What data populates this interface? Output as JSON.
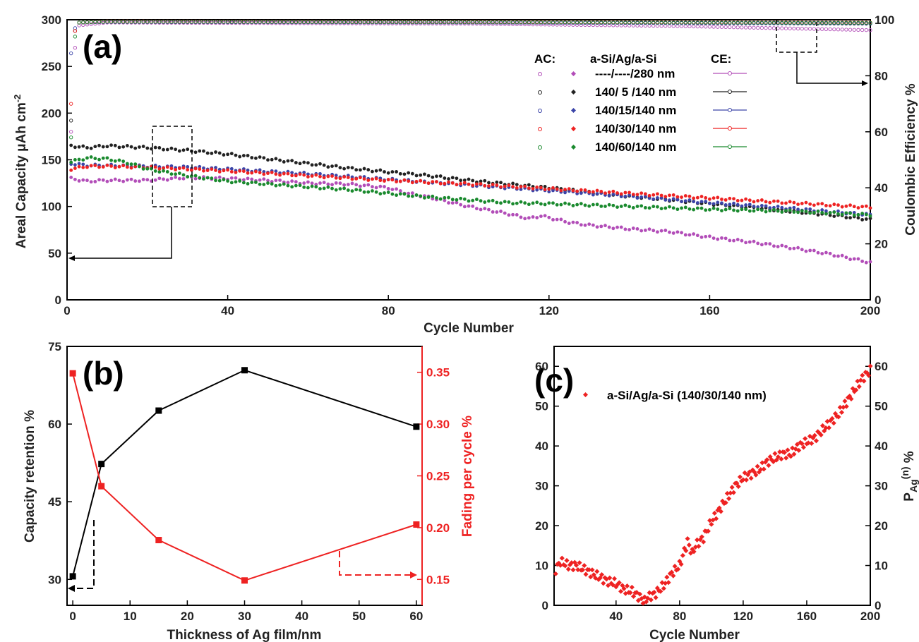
{
  "chart_data": [
    {
      "panel": "(a)",
      "type": "scatter",
      "xlabel": "Cycle Number",
      "ylabel": "Areal Capacity μAh cm-2",
      "ylabel_parts": [
        "Areal Capacity ",
        "μ",
        "Ah cm",
        "-2"
      ],
      "y2label": "Coulombic Efficiency %",
      "xlim": [
        0,
        200
      ],
      "ylim": [
        0,
        300
      ],
      "y2lim": [
        0,
        100
      ],
      "xticks": [
        "0",
        "40",
        "80",
        "120",
        "160",
        "200"
      ],
      "yticks": [
        "0",
        "50",
        "100",
        "150",
        "200",
        "250",
        "300"
      ],
      "y2ticks": [
        "0",
        "20",
        "40",
        "60",
        "80",
        "100"
      ],
      "legend": {
        "col1": "AC:",
        "col2": "a-Si/Ag/a-Si",
        "col3": "CE:",
        "entries": [
          "----/----/280 nm",
          "140/ 5 /140 nm",
          "140/15/140 nm",
          "140/30/140 nm",
          "140/60/140 nm"
        ]
      },
      "series": [
        {
          "name": "----/----/280 nm",
          "color": "#b24db8",
          "capacity": [
            [
              1,
              130
            ],
            [
              5,
              127
            ],
            [
              10,
              128
            ],
            [
              20,
              128
            ],
            [
              30,
              131
            ],
            [
              40,
              130
            ],
            [
              50,
              128
            ],
            [
              60,
              125
            ],
            [
              70,
              124
            ],
            [
              80,
              120
            ],
            [
              85,
              114
            ],
            [
              90,
              110
            ],
            [
              100,
              100
            ],
            [
              110,
              92
            ],
            [
              115,
              87
            ],
            [
              118,
              90
            ],
            [
              125,
              83
            ],
            [
              130,
              80
            ],
            [
              140,
              76
            ],
            [
              150,
              73
            ],
            [
              160,
              67
            ],
            [
              170,
              62
            ],
            [
              180,
              56
            ],
            [
              190,
              49
            ],
            [
              200,
              40
            ]
          ],
          "ce": [
            [
              1,
              60
            ],
            [
              2,
              90
            ],
            [
              3,
              98
            ],
            [
              10,
              99
            ],
            [
              100,
              98.6
            ],
            [
              150,
              97.8
            ],
            [
              200,
              96.3
            ]
          ]
        },
        {
          "name": "140/ 5 /140 nm",
          "color": "#222222",
          "capacity": [
            [
              1,
              165
            ],
            [
              5,
              163
            ],
            [
              10,
              165
            ],
            [
              20,
              163
            ],
            [
              30,
              160
            ],
            [
              40,
              156
            ],
            [
              50,
              151
            ],
            [
              60,
              146
            ],
            [
              70,
              141
            ],
            [
              80,
              137
            ],
            [
              90,
              133
            ],
            [
              100,
              128
            ],
            [
              110,
              124
            ],
            [
              120,
              120
            ],
            [
              130,
              115
            ],
            [
              140,
              111
            ],
            [
              150,
              107
            ],
            [
              160,
              103
            ],
            [
              170,
              99
            ],
            [
              180,
              95
            ],
            [
              190,
              91
            ],
            [
              200,
              86
            ]
          ],
          "ce": [
            [
              1,
              64
            ],
            [
              2,
              96
            ],
            [
              3,
              99
            ],
            [
              10,
              99.3
            ],
            [
              100,
              99.1
            ],
            [
              200,
              98.6
            ]
          ]
        },
        {
          "name": "140/15/140 nm",
          "color": "#3b44a8",
          "capacity": [
            [
              1,
              146
            ],
            [
              5,
              144
            ],
            [
              10,
              144
            ],
            [
              20,
              143
            ],
            [
              30,
              142
            ],
            [
              40,
              140
            ],
            [
              60,
              135
            ],
            [
              80,
              129
            ],
            [
              100,
              123
            ],
            [
              120,
              117
            ],
            [
              140,
              111
            ],
            [
              160,
              104
            ],
            [
              180,
              98
            ],
            [
              200,
              91
            ]
          ],
          "ce": [
            [
              1,
              88
            ],
            [
              2,
              97
            ],
            [
              3,
              99
            ],
            [
              10,
              99.2
            ],
            [
              100,
              99
            ],
            [
              200,
              98.7
            ]
          ]
        },
        {
          "name": "140/30/140 nm",
          "color": "#ee2222",
          "capacity": [
            [
              1,
              140
            ],
            [
              5,
              143
            ],
            [
              10,
              143
            ],
            [
              20,
              142
            ],
            [
              30,
              140
            ],
            [
              40,
              138
            ],
            [
              60,
              133
            ],
            [
              80,
              128
            ],
            [
              100,
              124
            ],
            [
              120,
              119
            ],
            [
              140,
              114
            ],
            [
              160,
              109
            ],
            [
              180,
              104
            ],
            [
              200,
              99
            ]
          ],
          "ce": [
            [
              1,
              70
            ],
            [
              2,
              96
            ],
            [
              3,
              99
            ],
            [
              10,
              99.4
            ],
            [
              100,
              99.2
            ],
            [
              200,
              99
            ]
          ]
        },
        {
          "name": "140/60/140 nm",
          "color": "#1a8a2e",
          "capacity": [
            [
              1,
              148
            ],
            [
              5,
              152
            ],
            [
              10,
              151
            ],
            [
              15,
              147
            ],
            [
              20,
              140
            ],
            [
              30,
              133
            ],
            [
              40,
              127
            ],
            [
              50,
              124
            ],
            [
              60,
              121
            ],
            [
              70,
              118
            ],
            [
              80,
              114
            ],
            [
              90,
              110
            ],
            [
              100,
              107
            ],
            [
              110,
              104
            ],
            [
              120,
              103
            ],
            [
              140,
              100
            ],
            [
              160,
              97
            ],
            [
              180,
              95
            ],
            [
              200,
              91
            ]
          ],
          "ce": [
            [
              1,
              58
            ],
            [
              2,
              94
            ],
            [
              3,
              99
            ],
            [
              10,
              99.3
            ],
            [
              100,
              99.1
            ],
            [
              200,
              98.9
            ]
          ]
        }
      ]
    },
    {
      "panel": "(b)",
      "type": "line",
      "xlabel": "Thickness of Ag film/nm",
      "ylabel": "Capacity retention %",
      "y2label": "Fading per cycle %",
      "xlim": [
        -1,
        61
      ],
      "ylim": [
        25,
        75
      ],
      "y2lim": [
        0.125,
        0.375
      ],
      "xticks": [
        "0",
        "10",
        "20",
        "30",
        "40",
        "50",
        "60"
      ],
      "yticks": [
        "30",
        "45",
        "60",
        "75"
      ],
      "y2ticks": [
        "0.15",
        "0.20",
        "0.25",
        "0.30",
        "0.35"
      ],
      "x": [
        0,
        5,
        15,
        30,
        60
      ],
      "series": [
        {
          "name": "Capacity retention %",
          "color": "#000000",
          "values": [
            30.6,
            52.3,
            62.6,
            70.4,
            59.5
          ]
        },
        {
          "name": "Fading per cycle %",
          "color": "#ee2222",
          "values": [
            0.349,
            0.24,
            0.188,
            0.149,
            0.203
          ]
        }
      ]
    },
    {
      "panel": "(c)",
      "type": "scatter",
      "xlabel": "Cycle Number",
      "y2label": "P Ag (n) %",
      "y2label_parts": [
        "P",
        "Ag",
        "(n)",
        " %"
      ],
      "xlim": [
        1,
        200
      ],
      "ylim": [
        0,
        65
      ],
      "xticks": [
        "40",
        "80",
        "120",
        "160",
        "200"
      ],
      "yticks": [
        "0",
        "10",
        "20",
        "30",
        "40",
        "50",
        "60"
      ],
      "y2ticks": [
        "0",
        "10",
        "20",
        "30",
        "40",
        "50",
        "60"
      ],
      "legend": "a-Si/Ag/a-Si (140/30/140 nm)",
      "series": [
        {
          "name": "a-Si/Ag/a-Si (140/30/140 nm)",
          "color": "#ee2222",
          "points": [
            [
              2,
              9
            ],
            [
              5,
              11
            ],
            [
              10,
              10
            ],
            [
              15,
              10
            ],
            [
              20,
              9
            ],
            [
              25,
              8
            ],
            [
              30,
              7
            ],
            [
              35,
              6
            ],
            [
              40,
              5.5
            ],
            [
              45,
              4
            ],
            [
              50,
              3.5
            ],
            [
              55,
              2
            ],
            [
              58,
              1
            ],
            [
              60,
              2
            ],
            [
              65,
              3
            ],
            [
              70,
              5
            ],
            [
              75,
              8
            ],
            [
              80,
              10
            ],
            [
              85,
              16
            ],
            [
              88,
              13
            ],
            [
              90,
              15
            ],
            [
              95,
              17
            ],
            [
              100,
              21
            ],
            [
              105,
              24
            ],
            [
              110,
              27
            ],
            [
              115,
              30
            ],
            [
              120,
              32
            ],
            [
              125,
              33
            ],
            [
              130,
              34
            ],
            [
              135,
              36
            ],
            [
              140,
              37
            ],
            [
              145,
              38
            ],
            [
              150,
              38
            ],
            [
              155,
              40
            ],
            [
              160,
              41
            ],
            [
              165,
              42
            ],
            [
              170,
              44
            ],
            [
              175,
              46
            ],
            [
              180,
              48
            ],
            [
              185,
              51
            ],
            [
              190,
              54
            ],
            [
              195,
              57
            ],
            [
              200,
              59
            ]
          ]
        }
      ]
    }
  ]
}
